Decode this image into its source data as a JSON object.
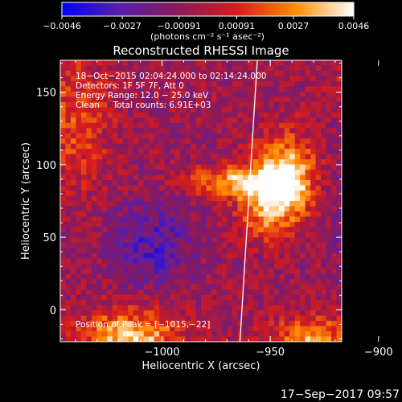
{
  "chart_data": {
    "type": "heatmap",
    "title": "Reconstructed RHESSI Image",
    "xlabel": "Heliocentric X (arcsec)",
    "ylabel": "Heliocentric Y (arcsec)",
    "xlim": [
      -1047,
      -917
    ],
    "ylim": [
      -22,
      172
    ],
    "x_ticks": [
      -1000,
      -950,
      -900
    ],
    "x_tick_labels": [
      "−1000",
      "−950",
      "−900"
    ],
    "y_ticks": [
      0,
      50,
      100,
      150
    ],
    "y_tick_labels": [
      "0",
      "50",
      "100",
      "150"
    ],
    "colorbar": {
      "min": -0.0046,
      "max": 0.0046,
      "ticks": [
        -0.0046,
        -0.0027,
        -0.00091,
        0.00091,
        0.0027,
        0.0046
      ],
      "tick_labels": [
        "−0.0046",
        "−0.0027",
        "−0.00091",
        "0.00091",
        "0.0027",
        "0.0046"
      ],
      "unit_label": "(photons cm⁻² s⁻¹ asec⁻²)",
      "colors": [
        "#0000ff",
        "#5a1fa8",
        "#8a1a5a",
        "#d81b1b",
        "#ff8c00",
        "#ffffff"
      ]
    },
    "info_lines": [
      "18−Oct−2015 02:04:24.000 to 02:14:24.000",
      "Detectors: 1F 5F 7F, Att 0",
      "Energy Range: 12.0 − 25.0 keV",
      "Clean     Total counts: 6.91E+03"
    ],
    "peak_label": "Position of Peak = [−1015,−22]",
    "limb_line": {
      "x_top": -956,
      "x_bottom": -964
    },
    "sources": [
      {
        "x": -942,
        "y": 92,
        "sx": 9,
        "sy": 20,
        "amp": 0.0046
      },
      {
        "x": -968,
        "y": 88,
        "sx": 16,
        "sy": 7,
        "amp": 0.0037
      },
      {
        "x": -952,
        "y": 74,
        "sx": 9,
        "sy": 18,
        "amp": 0.0034
      },
      {
        "x": -1015,
        "y": -22,
        "sx": 16,
        "sy": 15,
        "amp": 0.0046
      },
      {
        "x": -930,
        "y": -22,
        "sx": 14,
        "sy": 12,
        "amp": 0.0036
      },
      {
        "x": -1040,
        "y": 130,
        "sx": 12,
        "sy": 35,
        "amp": 0.002
      },
      {
        "x": -900,
        "y": 160,
        "sx": 16,
        "sy": 14,
        "amp": 0.0016
      }
    ]
  },
  "footer": {
    "timestamp": "17−Sep−2017 09:57"
  }
}
